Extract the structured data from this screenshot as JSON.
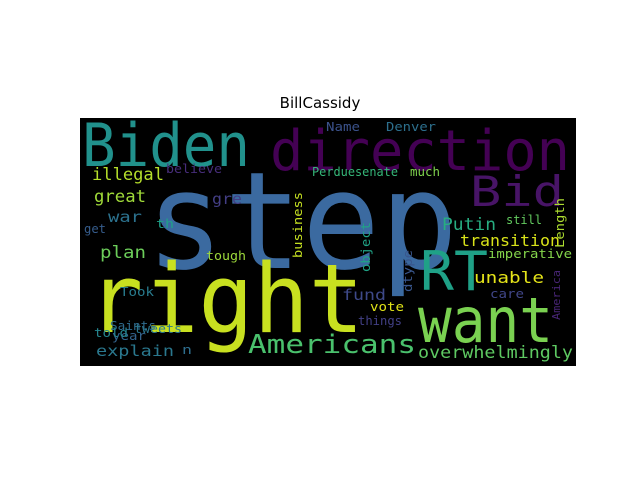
{
  "title": "BillCassidy",
  "words": [
    {
      "key": "step",
      "text": "step",
      "color": "#3b6aa0"
    },
    {
      "key": "right",
      "text": "right",
      "color": "#c8e020"
    },
    {
      "key": "direction",
      "text": "direction",
      "color": "#440154"
    },
    {
      "key": "biden",
      "text": "Biden",
      "color": "#21918c"
    },
    {
      "key": "want",
      "text": "want",
      "color": "#7ad151"
    },
    {
      "key": "rt",
      "text": "RT",
      "color": "#1fa187"
    },
    {
      "key": "bid",
      "text": "Bid",
      "color": "#481467"
    },
    {
      "key": "americans",
      "text": "Americans",
      "color": "#4ac16d"
    },
    {
      "key": "overwhelmingly",
      "text": "overwhelmingly",
      "color": "#5ec962"
    },
    {
      "key": "transition",
      "text": "transition",
      "color": "#d8e219"
    },
    {
      "key": "unable",
      "text": "unable",
      "color": "#e5e419"
    },
    {
      "key": "illegal",
      "text": "illegal",
      "color": "#b5de2b"
    },
    {
      "key": "great",
      "text": "great",
      "color": "#a0da39"
    },
    {
      "key": "putin",
      "text": "Putin",
      "color": "#27ad81"
    },
    {
      "key": "plan",
      "text": "plan",
      "color": "#6ccd5a"
    },
    {
      "key": "war",
      "text": "war",
      "color": "#2c728e"
    },
    {
      "key": "explain",
      "text": "explain",
      "color": "#2a788e"
    },
    {
      "key": "fund",
      "text": "fund",
      "color": "#3e4989"
    },
    {
      "key": "gre",
      "text": "gre",
      "color": "#433e85"
    },
    {
      "key": "perduesenate",
      "text": "Perduesenate",
      "color": "#35b779"
    },
    {
      "key": "much",
      "text": "much",
      "color": "#7fd34e"
    },
    {
      "key": "denver",
      "text": "Denver",
      "color": "#2d708e"
    },
    {
      "key": "name",
      "text": "Name",
      "color": "#3b528b"
    },
    {
      "key": "believe",
      "text": "believe",
      "color": "#472d7b"
    },
    {
      "key": "th",
      "text": "th",
      "color": "#1fa188"
    },
    {
      "key": "still",
      "text": "still",
      "color": "#63cb5f"
    },
    {
      "key": "length",
      "text": "Length",
      "color": "#addc30"
    },
    {
      "key": "imperative",
      "text": "imperative",
      "color": "#84d44b"
    },
    {
      "key": "tough",
      "text": "tough",
      "color": "#9dd93b"
    },
    {
      "key": "took",
      "text": "Took",
      "color": "#287c8e"
    },
    {
      "key": "get",
      "text": "get",
      "color": "#365d8d"
    },
    {
      "key": "business",
      "text": "business",
      "color": "#c5e021"
    },
    {
      "key": "object",
      "text": "object",
      "color": "#20a386"
    },
    {
      "key": "dtype",
      "text": "dtype",
      "color": "#39568c"
    },
    {
      "key": "care",
      "text": "care",
      "color": "#404688"
    },
    {
      "key": "america",
      "text": "America",
      "color": "#482576"
    },
    {
      "key": "saints",
      "text": "Saints",
      "color": "#2f6c8e"
    },
    {
      "key": "year",
      "text": "year",
      "color": "#33638d"
    },
    {
      "key": "tweets",
      "text": "tweets",
      "color": "#2a768e"
    },
    {
      "key": "told",
      "text": "told",
      "color": "#25858e"
    },
    {
      "key": "n",
      "text": "n",
      "color": "#2e6e8e"
    },
    {
      "key": "vote",
      "text": "vote",
      "color": "#e1e418"
    },
    {
      "key": "things",
      "text": "things",
      "color": "#424086"
    }
  ]
}
